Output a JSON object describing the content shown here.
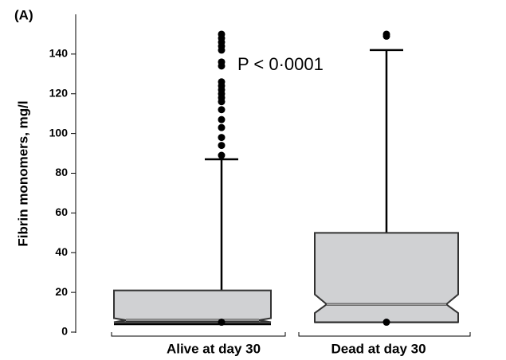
{
  "chart_data": {
    "type": "box",
    "panel_label": "(A)",
    "annotation": "P < 0·0001",
    "y_label": "Fibrin monomers, mg/l",
    "categories": [
      "Alive at day 30",
      "Dead at day 30"
    ],
    "color": "#d0d1d3",
    "boxes": [
      {
        "min": 4,
        "q1": 5,
        "median": 6,
        "q3": 21,
        "max": 87,
        "notch_low": 5,
        "notch_high": 7,
        "outliers": [
          5,
          89,
          94,
          98,
          103,
          107,
          112,
          116,
          118,
          120,
          122,
          124,
          126,
          134,
          136,
          142,
          144,
          146,
          148,
          150
        ]
      },
      {
        "min": 5,
        "q1": 5,
        "median": 14,
        "q3": 50,
        "max": 142,
        "notch_low": 9.6,
        "notch_high": 19,
        "outliers": [
          5,
          149,
          150
        ]
      }
    ],
    "ylim": [
      0,
      160
    ],
    "yticks": [
      0,
      20,
      40,
      60,
      80,
      100,
      120,
      140
    ]
  }
}
